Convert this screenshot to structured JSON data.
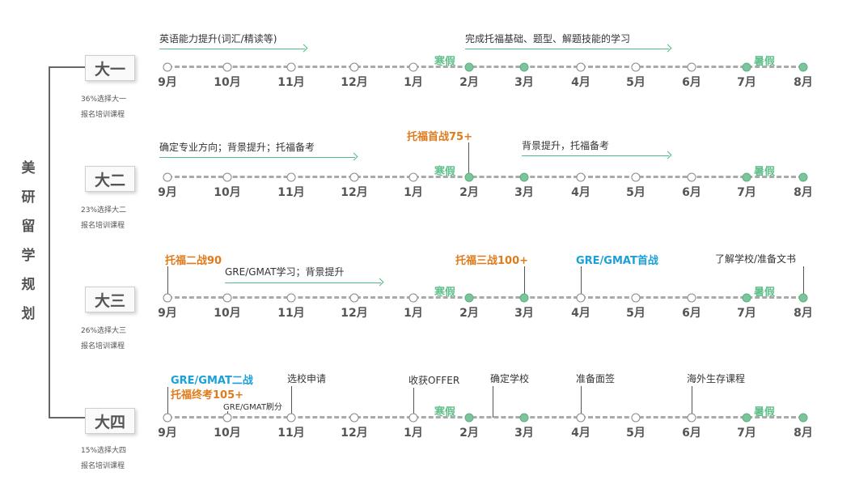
{
  "side_title": [
    "美",
    "研",
    "留",
    "学",
    "规",
    "划"
  ],
  "months": [
    "9月",
    "10月",
    "11月",
    "12月",
    "1月",
    "2月",
    "3月",
    "4月",
    "5月",
    "6月",
    "7月",
    "8月"
  ],
  "winter_label": "寒假",
  "summer_label": "暑假",
  "colors": {
    "green": "#7cc49b",
    "orange": "#e07b1c",
    "blue": "#1a9fd9"
  },
  "years": [
    {
      "name": "大一",
      "note1": "36%选择大一",
      "note2": "报名培训课程",
      "arrows": [
        "英语能力提升(词汇/精读等)",
        "完成托福基础、题型、解题技能的学习"
      ],
      "events": []
    },
    {
      "name": "大二",
      "note1": "23%选择大二",
      "note2": "报名培训课程",
      "arrows": [
        "确定专业方向；背景提升；托福备考",
        "背景提升，托福备考"
      ],
      "events": [
        "托福首战75+"
      ]
    },
    {
      "name": "大三",
      "note1": "26%选择大三",
      "note2": "报名培训课程",
      "arrows": [
        "GRE/GMAT学习；背景提升"
      ],
      "events": [
        "托福二战90",
        "托福三战100+",
        "GRE/GMAT首战",
        "了解学校/准备文书"
      ]
    },
    {
      "name": "大四",
      "note1": "15%选择大四",
      "note2": "报名培训课程",
      "arrows": [],
      "events": [
        "GRE/GMAT二战",
        "托福终考105+",
        "GRE/GMAT刷分",
        "选校申请",
        "收获OFFER",
        "确定学校",
        "准备面签",
        "海外生存课程"
      ]
    }
  ]
}
